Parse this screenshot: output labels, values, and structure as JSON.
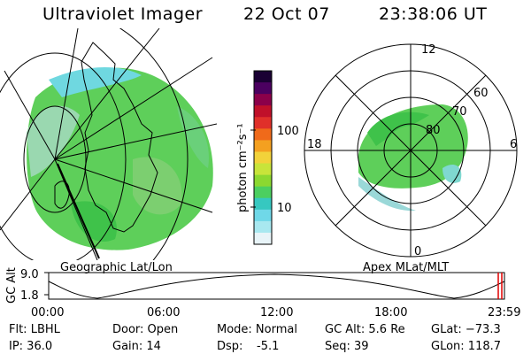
{
  "header": {
    "title": "Ultraviolet Imager",
    "date": "22 Oct 07",
    "time": "23:38:06 UT"
  },
  "left_panel": {
    "label": "Geographic Lat/Lon"
  },
  "colorbar": {
    "unit_label": "photon cm⁻²s⁻¹",
    "ticks": [
      "100",
      "10"
    ],
    "colors": [
      "#1a0033",
      "#4b0060",
      "#8b004a",
      "#c0102a",
      "#e0302a",
      "#f06a1a",
      "#f4a020",
      "#f2d23a",
      "#c8e43a",
      "#8cd830",
      "#4ccf60",
      "#36c8c0",
      "#6fd8e8",
      "#a8e8f0",
      "#e8f4f8"
    ]
  },
  "right_panel": {
    "label": "Apex MLat/MLT",
    "mlt_labels": [
      "12",
      "18",
      "6",
      "0"
    ],
    "lat_labels": [
      "60",
      "70",
      "80"
    ]
  },
  "timeline": {
    "ylabel": "GC Alt",
    "ymax": "9.0",
    "ymin": "1.8",
    "xticks": [
      "00:00",
      "06:00",
      "12:00",
      "18:00",
      "23:59"
    ]
  },
  "footer": {
    "flt": "Flt: LBHL",
    "ip": "IP: 36.0",
    "door": "Door: Open",
    "gain": "Gain: 14",
    "mode": "Mode: Normal",
    "dsp": "Dsp:",
    "dsp_val": "-5.1",
    "gcalt": "GC Alt: 5.6 Re",
    "seq": "Seq: 39",
    "glat": "GLat: −73.3",
    "glon": "GLon: 118.7"
  }
}
